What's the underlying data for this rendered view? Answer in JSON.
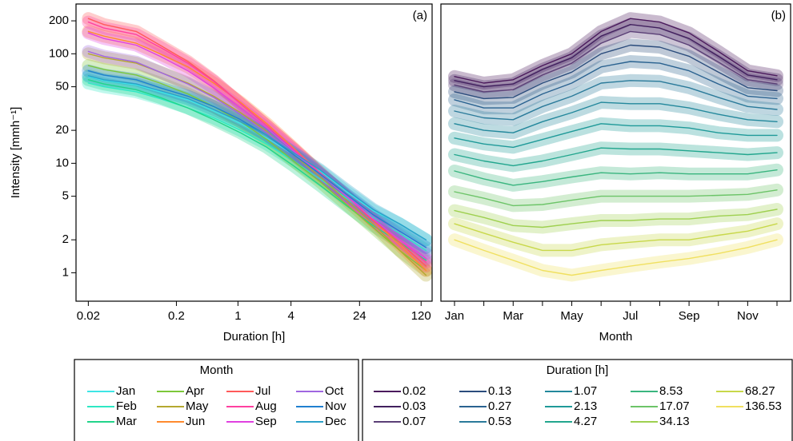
{
  "chart_data": [
    {
      "type": "line",
      "annotation": "(a)",
      "x_label": "Duration [h]",
      "y_label": "Intensity [mmh⁻¹]",
      "log_x": true,
      "log_y": true,
      "x": [
        0.02,
        0.03,
        0.07,
        0.13,
        0.27,
        0.53,
        1.07,
        2.13,
        4.27,
        8.53,
        17.07,
        34.13,
        68.27,
        136.53
      ],
      "xlim": [
        0.0145,
        160
      ],
      "xticks": [
        0.02,
        0.2,
        1,
        4,
        24,
        120
      ],
      "ylim": [
        0.55,
        285
      ],
      "yticks": [
        1,
        2,
        5,
        10,
        20,
        50,
        100,
        200
      ],
      "legend_title": "Month",
      "series": [
        {
          "name": "Jan",
          "color": "#3ee6e6",
          "values": [
            62,
            57,
            52,
            45,
            38,
            30,
            23,
            17,
            12,
            8.5,
            5.5,
            3.7,
            2.8,
            2
          ]
        },
        {
          "name": "Feb",
          "color": "#2ee8c4",
          "values": [
            54,
            50,
            45,
            39,
            32,
            26,
            20,
            15,
            10.5,
            7.2,
            4.8,
            3.2,
            2.3,
            1.6
          ]
        },
        {
          "name": "Mar",
          "color": "#22d48a",
          "values": [
            58,
            53,
            47,
            40,
            32,
            25,
            19,
            14,
            9.5,
            6.3,
            4.1,
            2.7,
            1.9,
            1.3
          ]
        },
        {
          "name": "Apr",
          "color": "#7cc83a",
          "values": [
            78,
            72,
            64,
            54,
            43,
            33,
            24,
            16.5,
            10.5,
            6.8,
            4.2,
            2.6,
            1.6,
            1.05
          ]
        },
        {
          "name": "May",
          "color": "#b4a830",
          "values": [
            100,
            92,
            82,
            68,
            54,
            41,
            29,
            19.5,
            12,
            7.5,
            4.6,
            2.8,
            1.6,
            0.95
          ]
        },
        {
          "name": "Jun",
          "color": "#ff8a2e",
          "values": [
            160,
            145,
            125,
            100,
            76,
            54,
            36,
            23,
            13.8,
            8.2,
            5,
            3,
            1.8,
            1.05
          ]
        },
        {
          "name": "Jul",
          "color": "#ff5a5a",
          "values": [
            210,
            185,
            160,
            120,
            85,
            57,
            35,
            22,
            13.5,
            8,
            5,
            3,
            1.9,
            1.15
          ]
        },
        {
          "name": "Aug",
          "color": "#ff40a0",
          "values": [
            195,
            172,
            150,
            115,
            82,
            56,
            35,
            22,
            13.5,
            8.2,
            5,
            3.1,
            2,
            1.25
          ]
        },
        {
          "name": "Sep",
          "color": "#e040e0",
          "values": [
            155,
            138,
            120,
            95,
            70,
            49,
            32,
            21,
            13,
            8,
            5,
            3.1,
            2,
            1.35
          ]
        },
        {
          "name": "Oct",
          "color": "#a066e0",
          "values": [
            105,
            95,
            84,
            68,
            53,
            40,
            28,
            19,
            12.5,
            8,
            5.1,
            3.3,
            2.2,
            1.5
          ]
        },
        {
          "name": "Nov",
          "color": "#2080d0",
          "values": [
            70,
            64,
            58,
            49,
            41,
            33,
            25,
            18,
            12,
            8,
            5.2,
            3.4,
            2.4,
            1.7
          ]
        },
        {
          "name": "Dec",
          "color": "#2aa0c8",
          "values": [
            63,
            58,
            53,
            46,
            39,
            31,
            24,
            18,
            12.5,
            8.7,
            5.7,
            3.8,
            2.8,
            2
          ]
        }
      ]
    },
    {
      "type": "line",
      "annotation": "(b)",
      "x_label": "Month",
      "log_y": true,
      "categories": [
        "Jan",
        null,
        "Mar",
        null,
        "May",
        null,
        "Jul",
        null,
        "Sep",
        null,
        "Nov",
        null
      ],
      "ylim": [
        0.55,
        285
      ],
      "legend_title": "Duration [h]",
      "series": [
        {
          "name": "0.02",
          "color": "#4b1a5c",
          "values": [
            62,
            54,
            58,
            78,
            100,
            160,
            210,
            195,
            155,
            105,
            70,
            63
          ]
        },
        {
          "name": "0.03",
          "color": "#41205e",
          "values": [
            57,
            50,
            53,
            72,
            92,
            145,
            185,
            172,
            138,
            95,
            64,
            58
          ]
        },
        {
          "name": "0.07",
          "color": "#5a3f76",
          "values": [
            52,
            45,
            47,
            64,
            82,
            125,
            160,
            150,
            120,
            84,
            58,
            53
          ]
        },
        {
          "name": "0.13",
          "color": "#2b4c7c",
          "values": [
            45,
            39,
            40,
            54,
            68,
            100,
            120,
            115,
            95,
            68,
            49,
            46
          ]
        },
        {
          "name": "0.27",
          "color": "#2a6290",
          "values": [
            38,
            32,
            32,
            43,
            54,
            76,
            85,
            82,
            70,
            53,
            41,
            39
          ]
        },
        {
          "name": "0.53",
          "color": "#2a7a9a",
          "values": [
            30,
            26,
            25,
            33,
            41,
            54,
            57,
            56,
            49,
            40,
            33,
            31
          ]
        },
        {
          "name": "1.07",
          "color": "#23889c",
          "values": [
            23,
            20,
            19,
            24,
            29,
            36,
            35,
            35,
            32,
            28,
            25,
            24
          ]
        },
        {
          "name": "2.13",
          "color": "#1f9a99",
          "values": [
            17,
            15,
            14,
            16.5,
            19.5,
            23,
            22,
            22,
            21,
            19,
            18,
            18
          ]
        },
        {
          "name": "4.27",
          "color": "#22a68e",
          "values": [
            12,
            10.5,
            9.5,
            10.5,
            12,
            13.8,
            13.5,
            13.5,
            13,
            12.5,
            12,
            12.5
          ]
        },
        {
          "name": "8.53",
          "color": "#3ab57f",
          "values": [
            8.5,
            7.2,
            6.3,
            6.8,
            7.5,
            8.2,
            8,
            8.2,
            8,
            8,
            8,
            8.7
          ]
        },
        {
          "name": "17.07",
          "color": "#6cc468",
          "values": [
            5.5,
            4.8,
            4.1,
            4.2,
            4.6,
            5,
            5,
            5,
            5,
            5.1,
            5.2,
            5.7
          ]
        },
        {
          "name": "34.13",
          "color": "#9ed04f",
          "values": [
            3.7,
            3.2,
            2.7,
            2.6,
            2.8,
            3,
            3,
            3.1,
            3.1,
            3.3,
            3.4,
            3.8
          ]
        },
        {
          "name": "68.27",
          "color": "#c8d84a",
          "values": [
            2.8,
            2.3,
            1.9,
            1.6,
            1.6,
            1.8,
            1.9,
            2,
            2,
            2.2,
            2.4,
            2.8
          ]
        },
        {
          "name": "136.53",
          "color": "#f0e060",
          "values": [
            2,
            1.6,
            1.3,
            1.05,
            0.95,
            1.05,
            1.15,
            1.25,
            1.35,
            1.5,
            1.7,
            2
          ]
        }
      ]
    }
  ]
}
